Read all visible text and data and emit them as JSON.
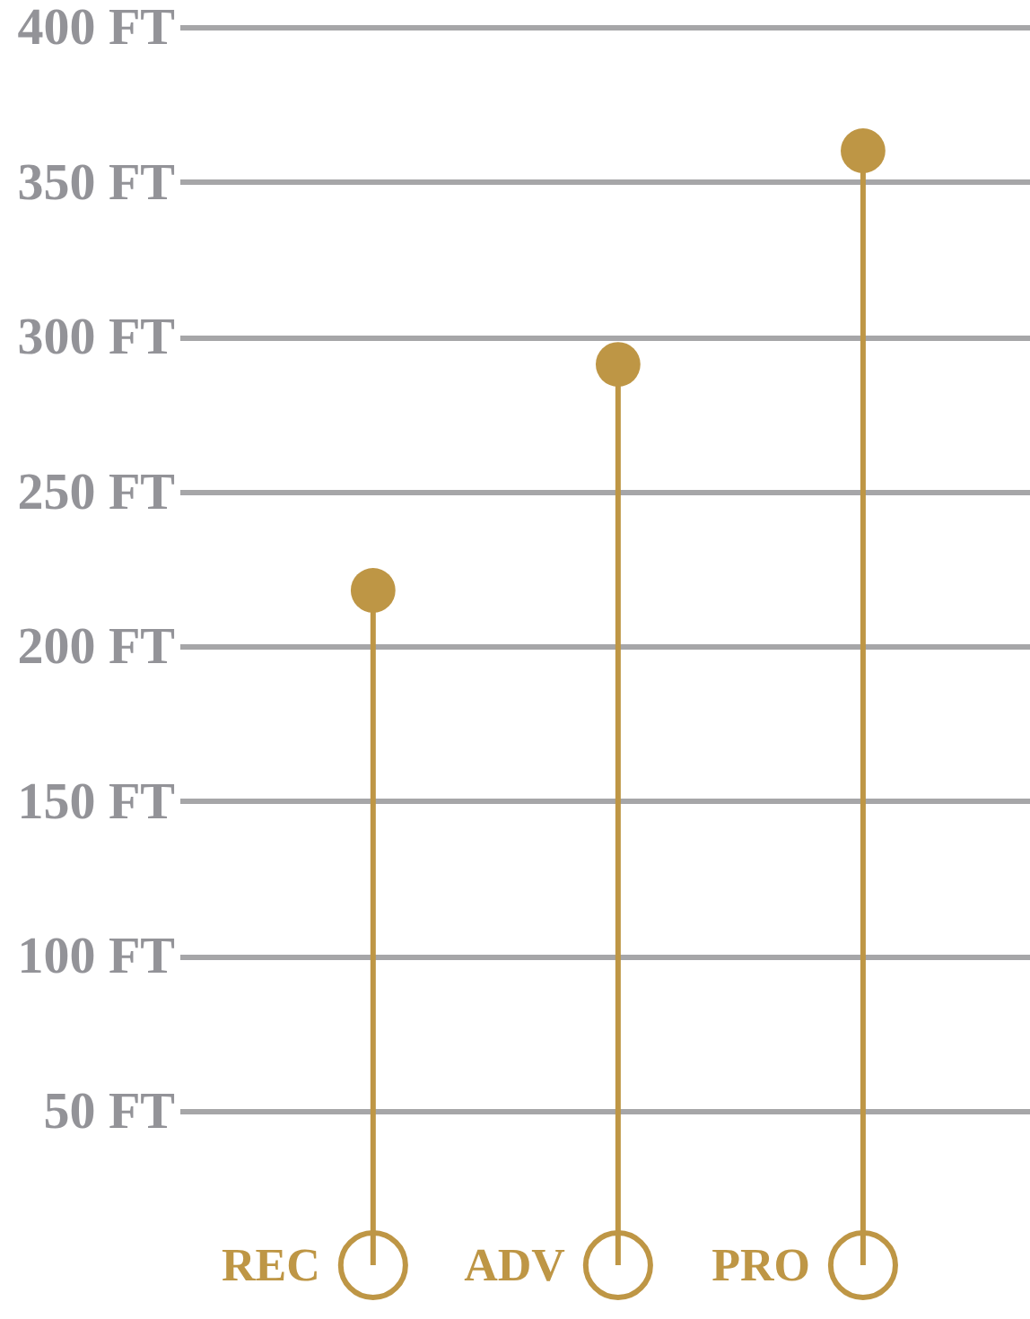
{
  "chart_data": {
    "type": "lollipop",
    "categories": [
      "REC",
      "ADV",
      "PRO"
    ],
    "values": [
      218,
      291,
      360
    ],
    "color": "#be9645",
    "ylim": [
      0,
      400
    ],
    "yticks": [
      {
        "value": 50,
        "label": "50 FT"
      },
      {
        "value": 100,
        "label": "100 FT"
      },
      {
        "value": 150,
        "label": "150 FT"
      },
      {
        "value": 200,
        "label": "200 FT"
      },
      {
        "value": 250,
        "label": "250 FT"
      },
      {
        "value": 300,
        "label": "300 FT"
      },
      {
        "value": 350,
        "label": "350 FT"
      },
      {
        "value": 400,
        "label": "400 FT"
      }
    ],
    "grid": "y",
    "marker": "circle"
  }
}
